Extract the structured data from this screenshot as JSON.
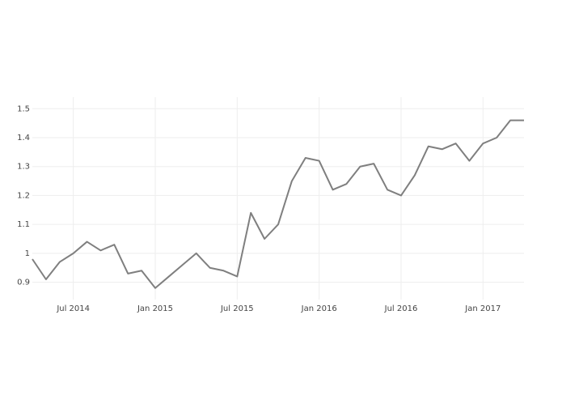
{
  "chart_data": {
    "type": "line",
    "x": [
      "2014-04",
      "2014-05",
      "2014-06",
      "2014-07",
      "2014-08",
      "2014-09",
      "2014-10",
      "2014-11",
      "2014-12",
      "2015-01",
      "2015-02",
      "2015-03",
      "2015-04",
      "2015-05",
      "2015-06",
      "2015-07",
      "2015-08",
      "2015-09",
      "2015-10",
      "2015-11",
      "2015-12",
      "2016-01",
      "2016-02",
      "2016-03",
      "2016-04",
      "2016-05",
      "2016-06",
      "2016-07",
      "2016-08",
      "2016-09",
      "2016-10",
      "2016-11",
      "2016-12",
      "2017-01",
      "2017-02",
      "2017-03",
      "2017-04"
    ],
    "series": [
      {
        "color": "#7f7f7f",
        "values": [
          0.98,
          0.91,
          0.97,
          1.0,
          1.04,
          1.01,
          1.03,
          0.93,
          0.94,
          0.88,
          0.92,
          0.96,
          1.0,
          0.95,
          0.94,
          0.92,
          1.14,
          1.05,
          1.1,
          1.25,
          1.33,
          1.32,
          1.22,
          1.24,
          1.3,
          1.31,
          1.22,
          1.2,
          1.27,
          1.37,
          1.36,
          1.38,
          1.32,
          1.38,
          1.4,
          1.46,
          1.46
        ]
      }
    ],
    "xlim": [
      "2014-04",
      "2017-04"
    ],
    "xticks": [
      {
        "value": "2014-07",
        "label": "Jul 2014"
      },
      {
        "value": "2015-01",
        "label": "Jan 2015"
      },
      {
        "value": "2015-07",
        "label": "Jul 2015"
      },
      {
        "value": "2016-01",
        "label": "Jan 2016"
      },
      {
        "value": "2016-07",
        "label": "Jul 2016"
      },
      {
        "value": "2017-01",
        "label": "Jan 2017"
      }
    ],
    "ylim": [
      0.84,
      1.54
    ],
    "yticks": [
      0.9,
      1,
      1.1,
      1.2,
      1.3,
      1.4,
      1.5
    ],
    "grid": true
  }
}
